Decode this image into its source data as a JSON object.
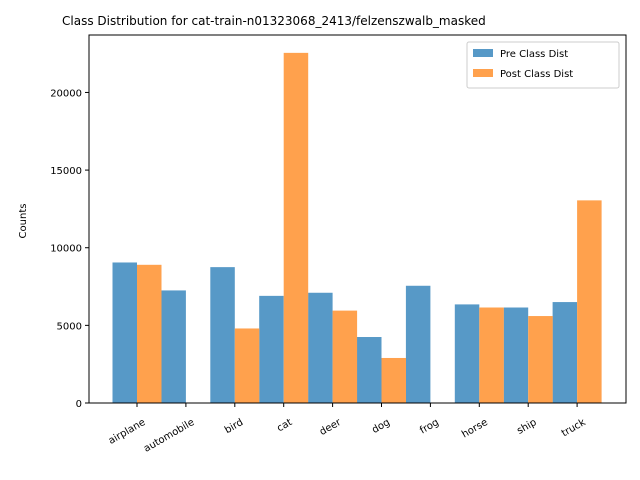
{
  "chart_data": {
    "type": "bar",
    "title": "Class Distribution for cat-train-n01323068_2413/felzenszwalb_masked",
    "xlabel": "",
    "ylabel": "Counts",
    "categories": [
      "airplane",
      "automobile",
      "bird",
      "cat",
      "deer",
      "dog",
      "frog",
      "horse",
      "ship",
      "truck"
    ],
    "series": [
      {
        "name": "Pre Class Dist",
        "color": "#5799c7",
        "values": [
          9050,
          7250,
          8750,
          6900,
          7100,
          4250,
          7550,
          6350,
          6150,
          6500
        ]
      },
      {
        "name": "Post Class Dist",
        "color": "#ffa14d",
        "values": [
          8900,
          0,
          4800,
          22550,
          5950,
          2900,
          0,
          6150,
          5600,
          13050
        ]
      }
    ],
    "ylim": [
      0,
      23700
    ],
    "yticks": [
      0,
      5000,
      10000,
      15000,
      20000
    ],
    "legend_position": "top-right",
    "grid": false
  }
}
